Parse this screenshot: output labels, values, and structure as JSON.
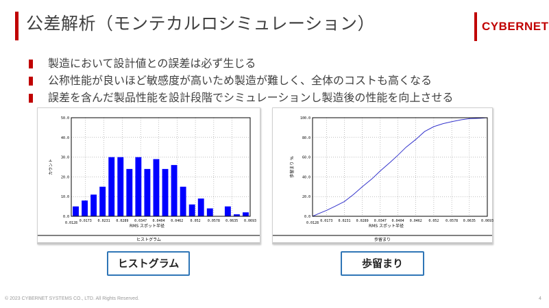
{
  "header": {
    "title": "公差解析（モンテカルロシミュレーション）",
    "logo": "CYBERNET",
    "accent_color": "#c00000"
  },
  "bullets": [
    "製造において設計値との誤差は必ず生じる",
    "公称性能が良いほど敏感度が高いため製造が難しく、全体のコストも高くなる",
    "誤差を含んだ製品性能を設計段階でシミュレーションし製造後の性能を向上させる"
  ],
  "captions": {
    "left": "ヒストグラム",
    "right": "歩留まり",
    "border_color": "#2e75b6"
  },
  "footer": {
    "copyright": "© 2023 CYBERNET SYSTEMS CO., LTD. All Rights Reserved.",
    "page": "4"
  },
  "chart_data": [
    {
      "type": "bar",
      "series_color": "#0000ff",
      "xlabel": "RMS スポット半径",
      "ylabel": "カウント",
      "footer_label": "ヒストグラム",
      "xlim": [
        0.0128,
        0.0693
      ],
      "ylim": [
        0,
        50
      ],
      "ytick_values": [
        0,
        10,
        20,
        30,
        40,
        50
      ],
      "ytick_labels": [
        "0.0",
        "10.0",
        "20.0",
        "30.0",
        "40.0",
        "50.0"
      ],
      "xtick_values": [
        0.0128,
        0.0173,
        0.0231,
        0.0289,
        0.0347,
        0.0404,
        0.0462,
        0.052,
        0.0578,
        0.0635,
        0.0693
      ],
      "xtick_labels": [
        "0.0128",
        "0.0173",
        "0.0231",
        "0.0289",
        "0.0347",
        "0.0404",
        "0.0462",
        "0.052",
        "0.0578",
        "0.0635",
        "0.0693"
      ],
      "values": [
        5,
        8,
        11,
        15,
        30,
        30,
        24,
        30,
        24,
        29,
        24,
        26,
        15,
        6,
        9,
        4,
        0,
        5,
        1,
        2
      ],
      "grid": true
    },
    {
      "type": "line",
      "series_color": "#3333cc",
      "xlabel": "RMS スポット半径",
      "ylabel": "歩留まり %",
      "footer_label": "歩留まり",
      "xlim": [
        0.0128,
        0.0693
      ],
      "ylim": [
        0,
        100
      ],
      "ytick_values": [
        0,
        20,
        40,
        60,
        80,
        100
      ],
      "ytick_labels": [
        "0.0",
        "20.0",
        "40.0",
        "60.0",
        "80.0",
        "100.0"
      ],
      "xtick_values": [
        0.0128,
        0.0173,
        0.0231,
        0.0289,
        0.0347,
        0.0404,
        0.0462,
        0.052,
        0.0578,
        0.0635,
        0.0693
      ],
      "xtick_labels": [
        "0.0128",
        "0.0173",
        "0.0231",
        "0.0289",
        "0.0347",
        "0.0404",
        "0.0462",
        "0.052",
        "0.0578",
        "0.0635",
        "0.0693"
      ],
      "x": [
        0.0128,
        0.015,
        0.0173,
        0.02,
        0.0231,
        0.026,
        0.0289,
        0.032,
        0.0347,
        0.038,
        0.0404,
        0.043,
        0.0462,
        0.049,
        0.052,
        0.055,
        0.0578,
        0.061,
        0.0635,
        0.067,
        0.0693
      ],
      "y": [
        0,
        3,
        6,
        10,
        15,
        22,
        30,
        38,
        46,
        55,
        62,
        70,
        78,
        86,
        91,
        94,
        96,
        98,
        99,
        99.5,
        100
      ],
      "grid": true
    }
  ]
}
